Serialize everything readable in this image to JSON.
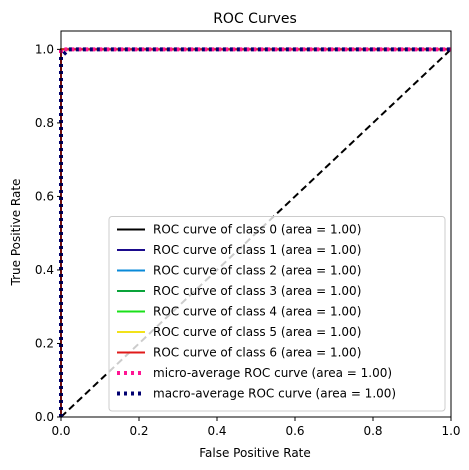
{
  "chart_data": {
    "type": "line",
    "title": "ROC Curves",
    "xlabel": "False Positive Rate",
    "ylabel": "True Positive Rate",
    "xlim": [
      0.0,
      1.0
    ],
    "ylim": [
      0.0,
      1.05
    ],
    "xticks": [
      0.0,
      0.2,
      0.4,
      0.6,
      0.8,
      1.0
    ],
    "yticks": [
      0.0,
      0.2,
      0.4,
      0.6,
      0.8,
      1.0
    ],
    "xtick_labels": [
      "0.0",
      "0.2",
      "0.4",
      "0.6",
      "0.8",
      "1.0"
    ],
    "ytick_labels": [
      "0.0",
      "0.2",
      "0.4",
      "0.6",
      "0.8",
      "1.0"
    ],
    "grid": false,
    "legend_position": "lower-right",
    "series": [
      {
        "name": "ROC curve of class 0 (area = 1.00)",
        "color": "#000000",
        "style": "solid",
        "x": [
          0.0,
          0.0,
          1.0
        ],
        "y": [
          0.0,
          1.0,
          1.0
        ]
      },
      {
        "name": "ROC curve of class 1 (area = 1.00)",
        "color": "#1a0a8c",
        "style": "solid",
        "x": [
          0.0,
          0.0,
          1.0
        ],
        "y": [
          0.0,
          1.0,
          1.0
        ]
      },
      {
        "name": "ROC curve of class 2 (area = 1.00)",
        "color": "#0a8ad8",
        "style": "solid",
        "x": [
          0.0,
          0.0,
          1.0
        ],
        "y": [
          0.0,
          1.0,
          1.0
        ]
      },
      {
        "name": "ROC curve of class 3 (area = 1.00)",
        "color": "#0aa33a",
        "style": "solid",
        "x": [
          0.0,
          0.0,
          1.0
        ],
        "y": [
          0.0,
          1.0,
          1.0
        ]
      },
      {
        "name": "ROC curve of class 4 (area = 1.00)",
        "color": "#1ae01a",
        "style": "solid",
        "x": [
          0.0,
          0.0,
          1.0
        ],
        "y": [
          0.0,
          1.0,
          1.0
        ]
      },
      {
        "name": "ROC curve of class 5 (area = 1.00)",
        "color": "#f2e21a",
        "style": "solid",
        "x": [
          0.0,
          0.0,
          1.0
        ],
        "y": [
          0.0,
          1.0,
          1.0
        ]
      },
      {
        "name": "ROC curve of class 6 (area = 1.00)",
        "color": "#e01a1a",
        "style": "solid",
        "x": [
          0.0,
          0.0,
          1.0
        ],
        "y": [
          0.0,
          1.0,
          1.0
        ]
      },
      {
        "name": "micro-average ROC curve (area = 1.00)",
        "color": "#ff1493",
        "style": "dotted",
        "x": [
          0.0,
          0.0,
          1.0
        ],
        "y": [
          0.0,
          1.0,
          1.0
        ]
      },
      {
        "name": "macro-average ROC curve (area = 1.00)",
        "color": "#000070",
        "style": "dotted",
        "x": [
          0.0,
          0.0,
          0.02,
          1.0
        ],
        "y": [
          0.0,
          0.98,
          1.0,
          1.0
        ]
      }
    ],
    "reference_line": {
      "x": [
        0.0,
        1.0
      ],
      "y": [
        0.0,
        1.0
      ],
      "color": "#000000",
      "style": "dashed"
    }
  }
}
